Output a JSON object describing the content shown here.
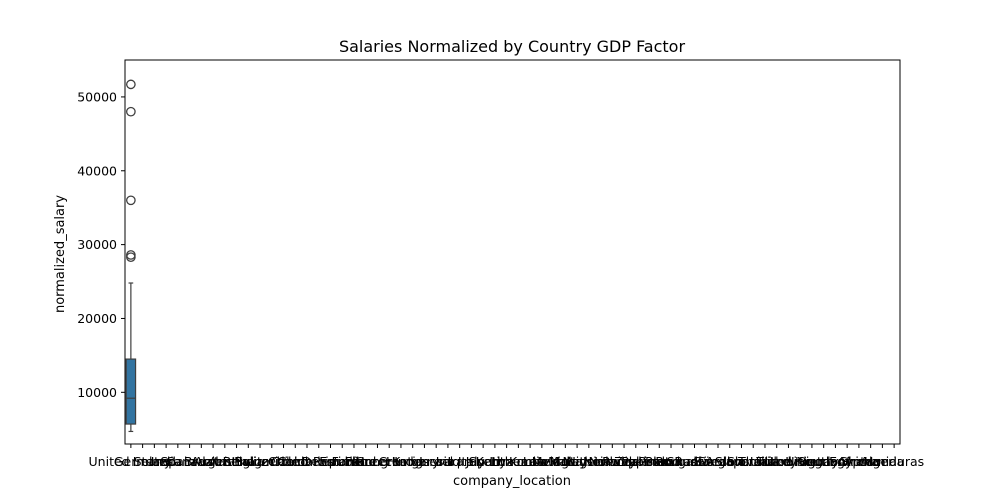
{
  "chart_data": {
    "type": "box",
    "title": "Salaries Normalized by Country GDP Factor",
    "xlabel": "company_location",
    "ylabel": "normalized_salary",
    "ylim": [
      3000,
      55000
    ],
    "yticks": [
      10000,
      20000,
      30000,
      40000,
      50000
    ],
    "categories": [
      "United States",
      "Germany",
      "Ireland",
      "India",
      "Spain",
      "Canada",
      "Brazil",
      "Austria",
      "Argentina",
      "Australia",
      "Belgium",
      "Bulgaria",
      "Switzerland",
      "Chile",
      "China",
      "Colombia",
      "Czech Republic",
      "Denmark",
      "Estonia",
      "Finland",
      "France",
      "Greece",
      "Hong Kong",
      "Croatia",
      "Hungary",
      "Indonesia",
      "Israel",
      "Iraq",
      "Iran",
      "Italy",
      "Japan",
      "Kenya",
      "South Korea",
      "Lithuania",
      "Luxembourg",
      "Latvia",
      "Mexico",
      "Malta",
      "Malaysia",
      "Nigeria",
      "Netherlands",
      "Norway",
      "New Zealand",
      "Philippines",
      "Pakistan",
      "Poland",
      "Portugal",
      "Romania",
      "Russia",
      "Saudi Arabia",
      "Sweden",
      "Singapore",
      "Slovenia",
      "Slovakia",
      "Thailand",
      "Turkey",
      "Ukraine",
      "United Kingdom",
      "Uruguay",
      "Vietnam",
      "South Africa",
      "Egypt",
      "Ghana",
      "Armenia",
      "Algeria",
      "Honduras"
    ],
    "box_color": "#3274a1",
    "boxes": [
      {
        "category": "United States",
        "q1": 5700,
        "median": 9200,
        "q3": 14500,
        "whisker_low": 4700,
        "whisker_high": 24800,
        "outliers": [
          28300,
          28600,
          36000,
          48000,
          51700
        ]
      }
    ]
  }
}
